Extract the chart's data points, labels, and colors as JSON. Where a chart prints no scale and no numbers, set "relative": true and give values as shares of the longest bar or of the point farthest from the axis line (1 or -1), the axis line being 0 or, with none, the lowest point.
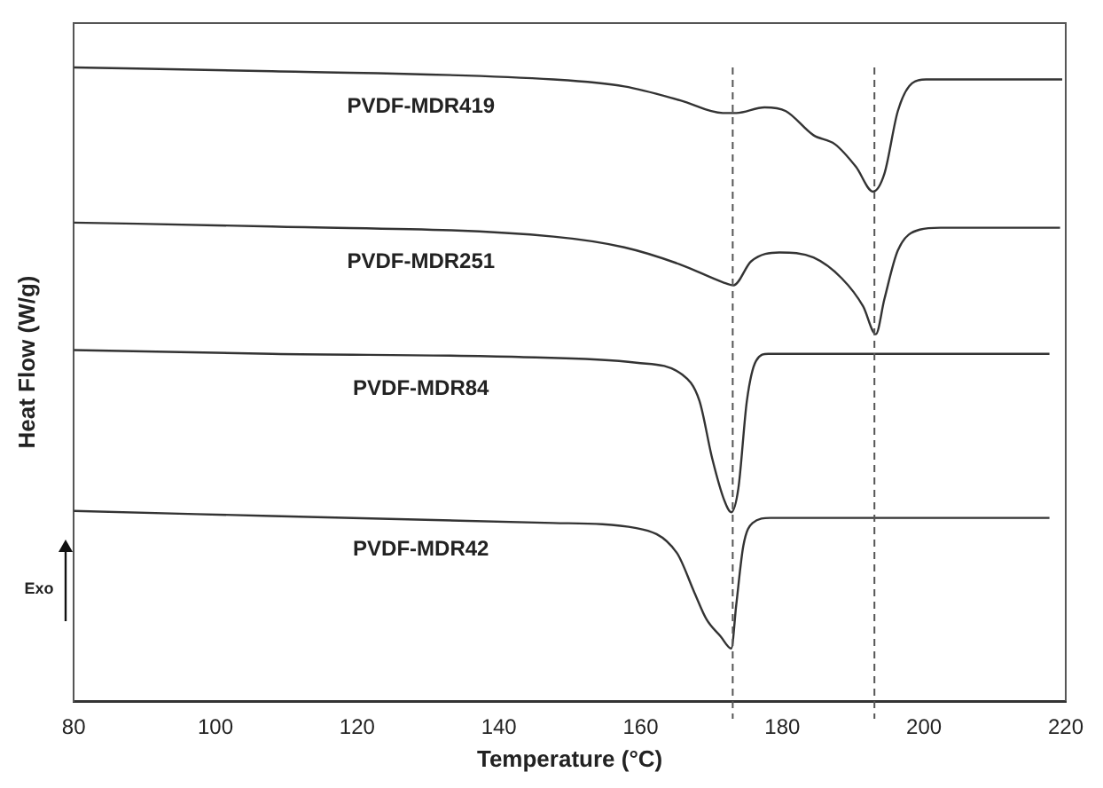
{
  "chart_data": {
    "type": "line",
    "xlabel": "Temperature (°C)",
    "ylabel": "Heat Flow (W/g)",
    "relative": true,
    "xlim": [
      80,
      220
    ],
    "xticks": [
      80,
      100,
      120,
      140,
      160,
      180,
      200,
      220
    ],
    "grid": false,
    "legend": false,
    "marker": "none",
    "line_style": "solid",
    "series": [
      {
        "name": "PVDF-MDR419",
        "color": "#333333",
        "x": [
          80,
          108,
          147.7,
          157.7,
          165.6,
          171.6,
          173.5,
          177.5,
          180.5,
          184.4,
          187.4,
          190.4,
          192.8,
          194.4,
          196.3,
          198.3,
          200.3,
          219.5
        ],
        "values": [
          1.0,
          0.994,
          0.981,
          0.97,
          0.948,
          0.928,
          0.928,
          0.937,
          0.931,
          0.893,
          0.879,
          0.843,
          0.804,
          0.832,
          0.931,
          0.975,
          0.981,
          0.981
        ]
      },
      {
        "name": "PVDF-MDR251",
        "color": "#333333",
        "x": [
          80,
          108,
          147.7,
          157.7,
          165.6,
          171.6,
          173.1,
          175.6,
          179.6,
          184.4,
          188.4,
          191.4,
          193.2,
          194.4,
          196.3,
          199.4,
          202.3,
          219.2
        ],
        "values": [
          0.755,
          0.749,
          0.733,
          0.716,
          0.689,
          0.661,
          0.656,
          0.694,
          0.708,
          0.7,
          0.667,
          0.623,
          0.579,
          0.634,
          0.711,
          0.744,
          0.747,
          0.747
        ]
      },
      {
        "name": "PVDF-MDR84",
        "color": "#333333",
        "x": [
          80,
          108,
          142.8,
          159.4,
          165.9,
          168.3,
          170.1,
          171.8,
          172.8,
          173.8,
          175.0,
          176.3,
          178.0,
          217.7
        ],
        "values": [
          0.554,
          0.548,
          0.543,
          0.534,
          0.515,
          0.474,
          0.383,
          0.317,
          0.298,
          0.336,
          0.474,
          0.537,
          0.548,
          0.548
        ]
      },
      {
        "name": "PVDF-MDR42",
        "color": "#333333",
        "x": [
          80,
          108,
          147.7,
          159.4,
          165.1,
          167.6,
          169.3,
          171.3,
          172.8,
          173.5,
          174.5,
          175.8,
          178.3,
          217.7
        ],
        "values": [
          0.3,
          0.292,
          0.281,
          0.273,
          0.234,
          0.171,
          0.129,
          0.102,
          0.083,
          0.152,
          0.245,
          0.281,
          0.289,
          0.289
        ]
      }
    ],
    "ref_lines": [
      {
        "axis": "x",
        "value": 173,
        "color": "#555555",
        "line_style": "dashed"
      },
      {
        "axis": "x",
        "value": 193,
        "color": "#555555",
        "line_style": "dashed"
      }
    ],
    "annotations": [
      "Exo"
    ]
  }
}
